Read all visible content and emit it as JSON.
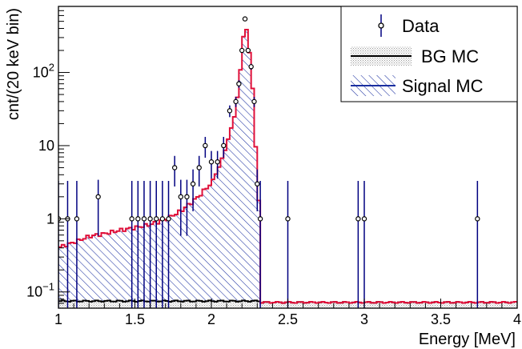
{
  "chart_data": {
    "type": "histogram",
    "xlabel": "Energy [MeV]",
    "ylabel": "cnt/(20 keV bin)",
    "xlim": [
      1,
      4
    ],
    "ylim": [
      0.06,
      800
    ],
    "yscale": "log",
    "bin_width": 0.02,
    "x_ticks": [
      "1",
      "1.5",
      "2",
      "2.5",
      "3",
      "3.5",
      "4"
    ],
    "y_ticks": [
      {
        "value": 0.1,
        "base": "10",
        "exp": "−1"
      },
      {
        "value": 1,
        "label": "1"
      },
      {
        "value": 10,
        "label": "10"
      },
      {
        "value": 100,
        "base": "10",
        "exp": "2"
      }
    ],
    "legend": {
      "position": "top-right",
      "entries": [
        "Data",
        "BG MC",
        "Signal MC"
      ]
    },
    "colors": {
      "data": "#000080",
      "total_mc": "#e0103a",
      "signal_hatch": "#1a2fa0",
      "bg_fill": "#bdbdbd",
      "bg_line": "#000000"
    },
    "series": [
      {
        "name": "BG MC",
        "style": "dotted-fill",
        "bg_level_below": 0.075,
        "bg_level_above": 0.072,
        "bg_step": 2.33
      },
      {
        "name": "Signal MC",
        "style": "hatched-histogram",
        "x": [
          1.0,
          1.1,
          1.2,
          1.3,
          1.4,
          1.5,
          1.6,
          1.7,
          1.8,
          1.9,
          2.0,
          2.05,
          2.1,
          2.15,
          2.18,
          2.2,
          2.22,
          2.24,
          2.26,
          2.28,
          2.3,
          2.32,
          2.33
        ],
        "values": [
          0.33,
          0.4,
          0.5,
          0.55,
          0.62,
          0.68,
          0.76,
          0.9,
          1.2,
          1.8,
          3.0,
          5.0,
          10,
          25,
          60,
          200,
          480,
          300,
          120,
          30,
          3.0,
          1.0,
          0.0
        ]
      },
      {
        "name": "Data",
        "style": "points-with-errors",
        "x": [
          1.0,
          1.06,
          1.12,
          1.26,
          1.48,
          1.52,
          1.56,
          1.6,
          1.64,
          1.68,
          1.72,
          1.76,
          1.8,
          1.84,
          1.88,
          1.92,
          1.96,
          2.0,
          2.04,
          2.08,
          2.12,
          2.16,
          2.18,
          2.2,
          2.22,
          2.24,
          2.26,
          2.28,
          2.3,
          2.32,
          2.5,
          2.96,
          3.0,
          3.74
        ],
        "values": [
          1,
          1,
          1,
          2,
          1,
          1,
          1,
          1,
          1,
          1,
          1,
          5,
          2,
          2,
          3,
          5,
          10,
          6,
          6,
          10,
          30,
          40,
          70,
          200,
          540,
          200,
          120,
          40,
          3,
          1,
          1,
          1,
          1,
          1
        ]
      }
    ]
  }
}
